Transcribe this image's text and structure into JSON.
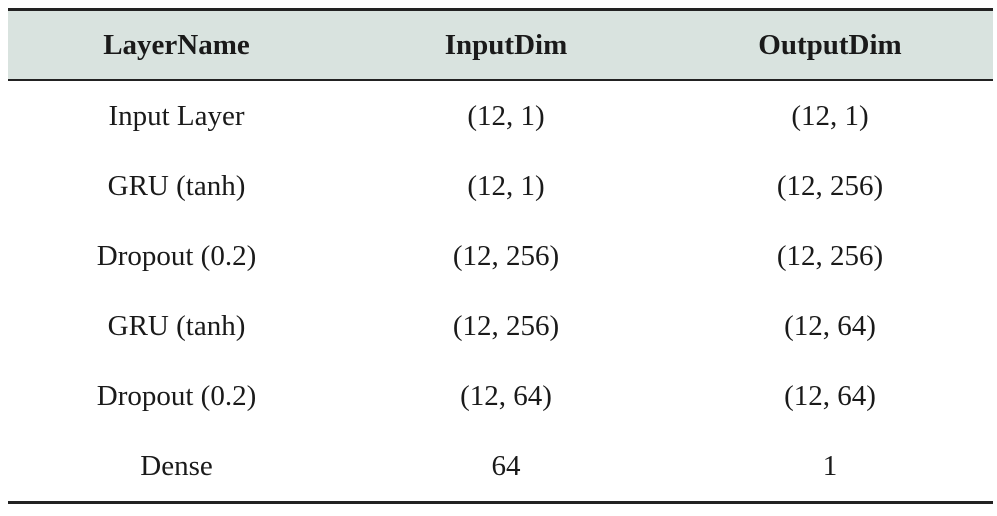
{
  "table": {
    "headers": [
      "LayerName",
      "InputDim",
      "OutputDim"
    ],
    "rows": [
      [
        "Input Layer",
        "(12, 1)",
        "(12, 1)"
      ],
      [
        "GRU (tanh)",
        "(12, 1)",
        "(12, 256)"
      ],
      [
        "Dropout (0.2)",
        "(12, 256)",
        "(12, 256)"
      ],
      [
        "GRU (tanh)",
        "(12, 256)",
        "(12, 64)"
      ],
      [
        "Dropout (0.2)",
        "(12, 64)",
        "(12, 64)"
      ],
      [
        "Dense",
        "64",
        "1"
      ]
    ]
  },
  "colors": {
    "header_background": "#d9e3df",
    "rule": "#222222"
  }
}
